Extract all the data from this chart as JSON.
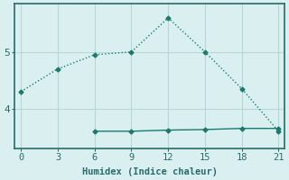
{
  "line1_x": [
    0,
    3,
    6,
    9,
    12,
    15,
    18,
    21
  ],
  "line1_y": [
    4.3,
    4.7,
    4.95,
    5.0,
    5.6,
    5.0,
    4.35,
    3.6
  ],
  "line2_x": [
    6,
    9,
    12,
    15,
    18,
    21
  ],
  "line2_y": [
    3.6,
    3.6,
    3.62,
    3.63,
    3.65,
    3.65
  ],
  "line_color": "#1a7a6e",
  "bg_color": "#daf0f0",
  "grid_color": "#b8d8d8",
  "axis_color": "#2a6a6a",
  "xlabel": "Humidex (Indice chaleur)",
  "xlabel_fontsize": 7.5,
  "xticks": [
    0,
    3,
    6,
    9,
    12,
    15,
    18,
    21
  ],
  "ytick_labels": [
    "4",
    "5"
  ],
  "ytick_positions": [
    4.0,
    5.0
  ],
  "xlim": [
    -0.5,
    21.5
  ],
  "ylim": [
    3.3,
    5.85
  ],
  "markersize": 2.5,
  "linewidth": 1.0,
  "line1_style": "dotted",
  "line2_style": "solid"
}
